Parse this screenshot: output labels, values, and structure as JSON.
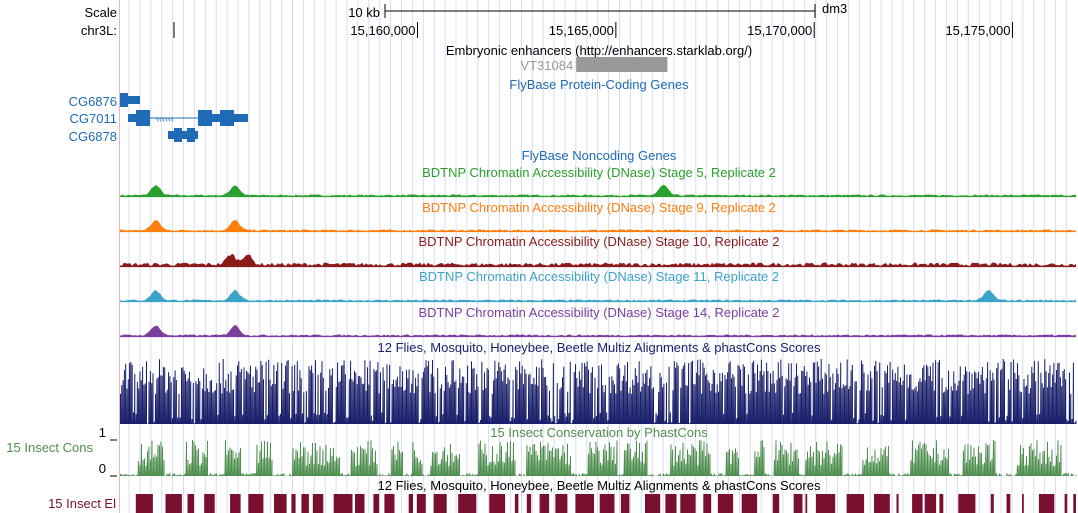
{
  "ruler": {
    "scale_label": "Scale",
    "chrom_label": "chr3L:",
    "scale_bar_text": "10 kb",
    "assembly": "dm3",
    "ticks": [
      {
        "pos": 15160000,
        "label": "15,160,000"
      },
      {
        "pos": 15165000,
        "label": "15,165,000"
      },
      {
        "pos": 15170000,
        "label": "15,170,000"
      },
      {
        "pos": 15175000,
        "label": "15,175,000"
      }
    ]
  },
  "view": {
    "start": 15152500,
    "end": 15176600
  },
  "enhancers": {
    "title": "Embryonic enhancers (http://enhancers.starklab.org/)",
    "item": {
      "name": "VT31084",
      "start": 15164000,
      "end": 15166300
    }
  },
  "genes": {
    "title": "FlyBase Protein-Coding Genes",
    "items": [
      {
        "name": "CG6876",
        "start": 15152550,
        "end": 15153000
      },
      {
        "name": "CG7011",
        "start": 15152700,
        "end": 15155600
      },
      {
        "name": "CG6878",
        "start": 15153700,
        "end": 15154250
      }
    ]
  },
  "noncoding": {
    "title": "FlyBase Noncoding Genes"
  },
  "dnase": [
    {
      "title": "BDTNP Chromatin Accessibility (DNase) Stage 5, Replicate 2",
      "color": "#2ca02c",
      "peaks": [
        15153400,
        15155400,
        15166200
      ]
    },
    {
      "title": "BDTNP Chromatin Accessibility (DNase) Stage 9, Replicate 2",
      "color": "#ff7f0e",
      "peaks": [
        15153400,
        15155400
      ]
    },
    {
      "title": "BDTNP Chromatin Accessibility (DNase) Stage 10, Replicate 2",
      "color": "#8b1a1a",
      "peaks": [
        15155300,
        15155700
      ]
    },
    {
      "title": "BDTNP Chromatin Accessibility (DNase) Stage 11, Replicate 2",
      "color": "#3ba3c9",
      "peaks": [
        15153400,
        15155400,
        15174400
      ]
    },
    {
      "title": "BDTNP Chromatin Accessibility (DNase) Stage 14, Replicate 2",
      "color": "#7b3fa0",
      "peaks": [
        15153400,
        15155400
      ]
    }
  ],
  "multiz": {
    "title": "12 Flies, Mosquito, Honeybee, Beetle Multiz Alignments & phastCons Scores",
    "color": "#1a1f6b"
  },
  "cons15": {
    "title": "15 Insect Conservation by PhastCons",
    "side_label": "15 Insect Cons",
    "ymax": "1",
    "ymin": "0",
    "color": "#4f8f4f"
  },
  "elements": {
    "title": "12 Flies, Mosquito, Honeybee, Beetle Multiz Alignments & phastCons Scores",
    "side_label": "15 Insect El",
    "color": "#7a1030"
  },
  "colors": {
    "gene": "#1f6bb5",
    "grid": "#d9dcf5",
    "enhancer": "#999999",
    "ruler_text": "#000000"
  }
}
